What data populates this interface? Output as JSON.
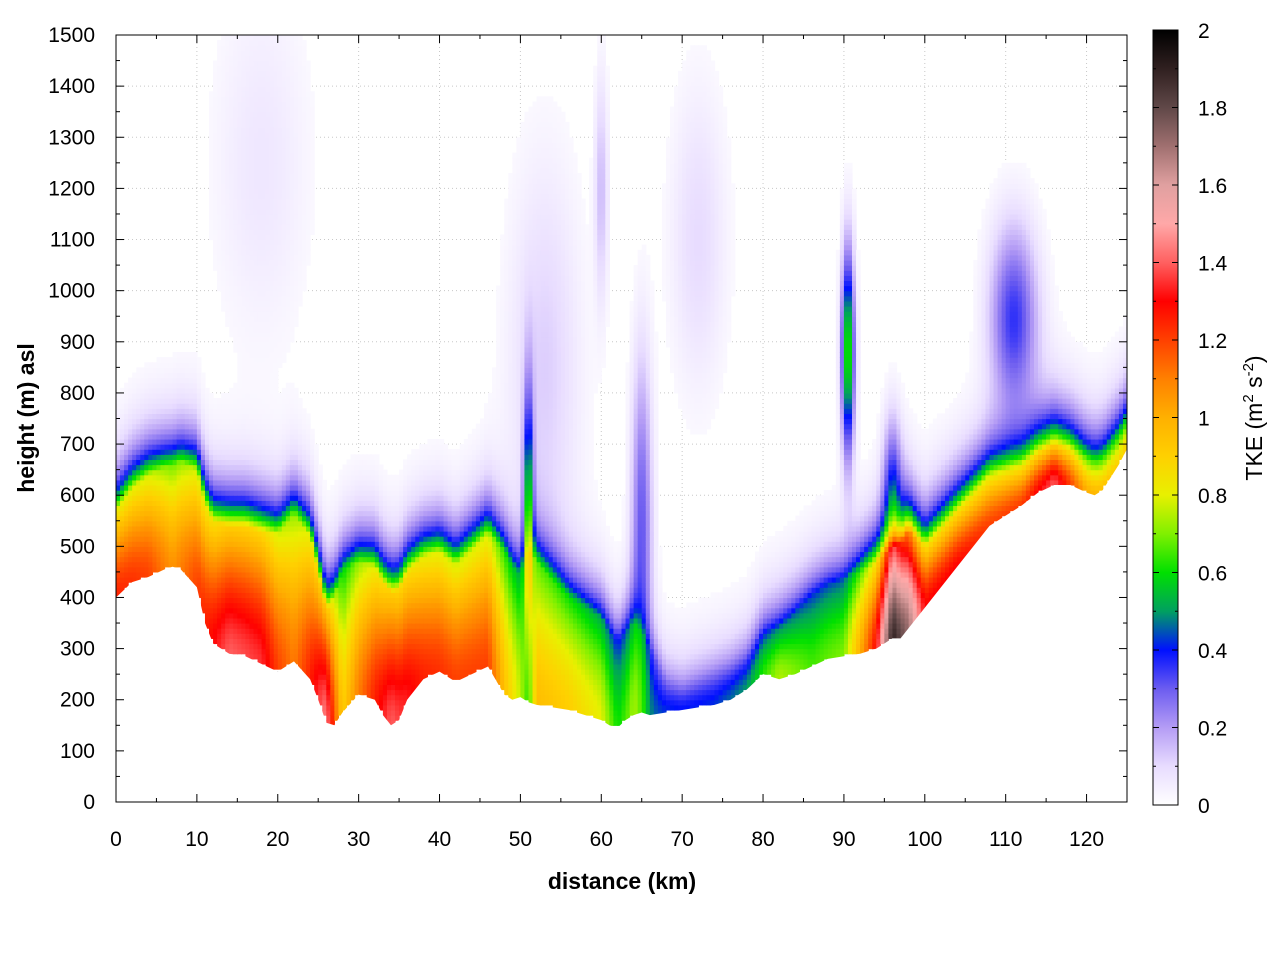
{
  "chart_data": {
    "type": "heatmap",
    "xlabel": "distance (km)",
    "ylabel": "height (m) asl",
    "xlim": [
      0,
      125
    ],
    "ylim": [
      0,
      1500
    ],
    "xticks": [
      0,
      10,
      20,
      30,
      40,
      50,
      60,
      70,
      80,
      90,
      100,
      110,
      120
    ],
    "yticks": [
      0,
      100,
      200,
      300,
      400,
      500,
      600,
      700,
      800,
      900,
      1000,
      1100,
      1200,
      1300,
      1400,
      1500
    ],
    "grid": true,
    "colorbar": {
      "label_prefix": "TKE (m",
      "label_sup1": "2",
      "label_mid": " s",
      "label_sup2": "-2",
      "label_suffix": ")",
      "range": [
        0,
        2
      ],
      "ticks": [
        0,
        0.2,
        0.4,
        0.6,
        0.8,
        1,
        1.2,
        1.4,
        1.6,
        1.8,
        2
      ],
      "stops": [
        {
          "value": 0.0,
          "color": "#ffffff"
        },
        {
          "value": 0.1,
          "color": "#e8dcff"
        },
        {
          "value": 0.2,
          "color": "#b49cf5"
        },
        {
          "value": 0.3,
          "color": "#6c5cf0"
        },
        {
          "value": 0.4,
          "color": "#0010ff"
        },
        {
          "value": 0.5,
          "color": "#00a060"
        },
        {
          "value": 0.6,
          "color": "#00e000"
        },
        {
          "value": 0.7,
          "color": "#80f000"
        },
        {
          "value": 0.8,
          "color": "#e8f000"
        },
        {
          "value": 0.9,
          "color": "#ffd000"
        },
        {
          "value": 1.0,
          "color": "#ffb000"
        },
        {
          "value": 1.1,
          "color": "#ff8000"
        },
        {
          "value": 1.2,
          "color": "#ff4000"
        },
        {
          "value": 1.3,
          "color": "#ff0000"
        },
        {
          "value": 1.4,
          "color": "#ff6060"
        },
        {
          "value": 1.5,
          "color": "#ffa8a8"
        },
        {
          "value": 1.6,
          "color": "#e0a0a0"
        },
        {
          "value": 1.7,
          "color": "#a07070"
        },
        {
          "value": 1.8,
          "color": "#604848"
        },
        {
          "value": 1.9,
          "color": "#302020"
        },
        {
          "value": 2.0,
          "color": "#000000"
        }
      ]
    },
    "terrain": {
      "x": [
        0,
        2,
        4,
        6,
        7,
        8,
        10,
        11,
        12,
        14,
        16,
        18,
        20,
        22,
        24,
        25,
        26,
        27,
        28,
        30,
        32,
        33,
        34,
        35,
        36,
        38,
        40,
        42,
        44,
        46,
        48,
        49,
        50,
        51,
        52,
        54,
        56,
        58,
        60,
        61,
        62,
        63,
        64,
        65,
        66,
        68,
        70,
        72,
        74,
        76,
        78,
        80,
        82,
        84,
        86,
        88,
        90,
        92,
        94,
        96,
        97,
        98,
        100,
        102,
        104,
        106,
        108,
        110,
        112,
        114,
        116,
        118,
        120,
        121,
        122,
        124,
        125
      ],
      "y": [
        400,
        430,
        440,
        455,
        460,
        455,
        420,
        350,
        310,
        290,
        285,
        270,
        255,
        275,
        240,
        200,
        155,
        150,
        175,
        210,
        200,
        170,
        150,
        160,
        200,
        240,
        255,
        235,
        250,
        265,
        210,
        200,
        205,
        195,
        190,
        185,
        180,
        170,
        160,
        150,
        145,
        160,
        170,
        175,
        170,
        175,
        180,
        185,
        190,
        200,
        220,
        250,
        240,
        250,
        265,
        280,
        285,
        290,
        300,
        320,
        320,
        340,
        380,
        420,
        460,
        500,
        540,
        560,
        580,
        605,
        620,
        620,
        605,
        600,
        610,
        660,
        690
      ]
    },
    "tke_profile": {
      "x": [
        0,
        4,
        7,
        10,
        14,
        18,
        20,
        22,
        24,
        26,
        28,
        30,
        34,
        38,
        42,
        46,
        48,
        50,
        51,
        52,
        56,
        60,
        62,
        64,
        66,
        68,
        70,
        74,
        78,
        82,
        86,
        90,
        94,
        96,
        98,
        100,
        104,
        108,
        112,
        116,
        120,
        124
      ],
      "peak": [
        1.25,
        1.2,
        1.05,
        1.2,
        1.4,
        1.35,
        1.2,
        1.1,
        1.25,
        1.45,
        0.9,
        1.1,
        1.4,
        1.25,
        1.2,
        1.2,
        0.95,
        0.75,
        0.55,
        0.95,
        0.9,
        0.8,
        0.6,
        0.7,
        0.45,
        0.42,
        0.4,
        0.42,
        0.5,
        0.75,
        0.65,
        0.7,
        1.3,
        1.9,
        1.7,
        1.3,
        1.3,
        1.2,
        1.2,
        1.4,
        1.0,
        0.9
      ],
      "depth_m": [
        170,
        200,
        200,
        230,
        250,
        260,
        270,
        290,
        280,
        220,
        280,
        260,
        260,
        240,
        230,
        260,
        280,
        240,
        300,
        280,
        220,
        200,
        170,
        180,
        130,
        60,
        45,
        60,
        60,
        100,
        140,
        150,
        170,
        180,
        190,
        120,
        110,
        100,
        80,
        80,
        70,
        60
      ]
    },
    "aloft_features": [
      {
        "x": 90.5,
        "z_center": 880,
        "half_width_km": 0.8,
        "half_height_m": 200,
        "peak": 0.65
      },
      {
        "x": 111,
        "z_center": 950,
        "half_width_km": 3,
        "half_height_m": 180,
        "peak": 0.35
      },
      {
        "x": 65,
        "z_center": 550,
        "half_width_km": 1.3,
        "half_height_m": 320,
        "peak": 0.3
      },
      {
        "x": 51,
        "z_center": 560,
        "half_width_km": 0.6,
        "half_height_m": 240,
        "peak": 0.55
      },
      {
        "x": 60,
        "z_center": 1200,
        "half_width_km": 0.8,
        "half_height_m": 220,
        "peak": 0.15
      },
      {
        "x": 53,
        "z_center": 850,
        "half_width_km": 4.5,
        "half_height_m": 400,
        "peak": 0.12
      },
      {
        "x": 18,
        "z_center": 1250,
        "half_width_km": 6,
        "half_height_m": 350,
        "peak": 0.07
      },
      {
        "x": 72,
        "z_center": 1100,
        "half_width_km": 3.5,
        "half_height_m": 300,
        "peak": 0.1
      },
      {
        "x": 96,
        "z_center": 620,
        "half_width_km": 1.2,
        "half_height_m": 140,
        "peak": 0.3
      }
    ]
  }
}
